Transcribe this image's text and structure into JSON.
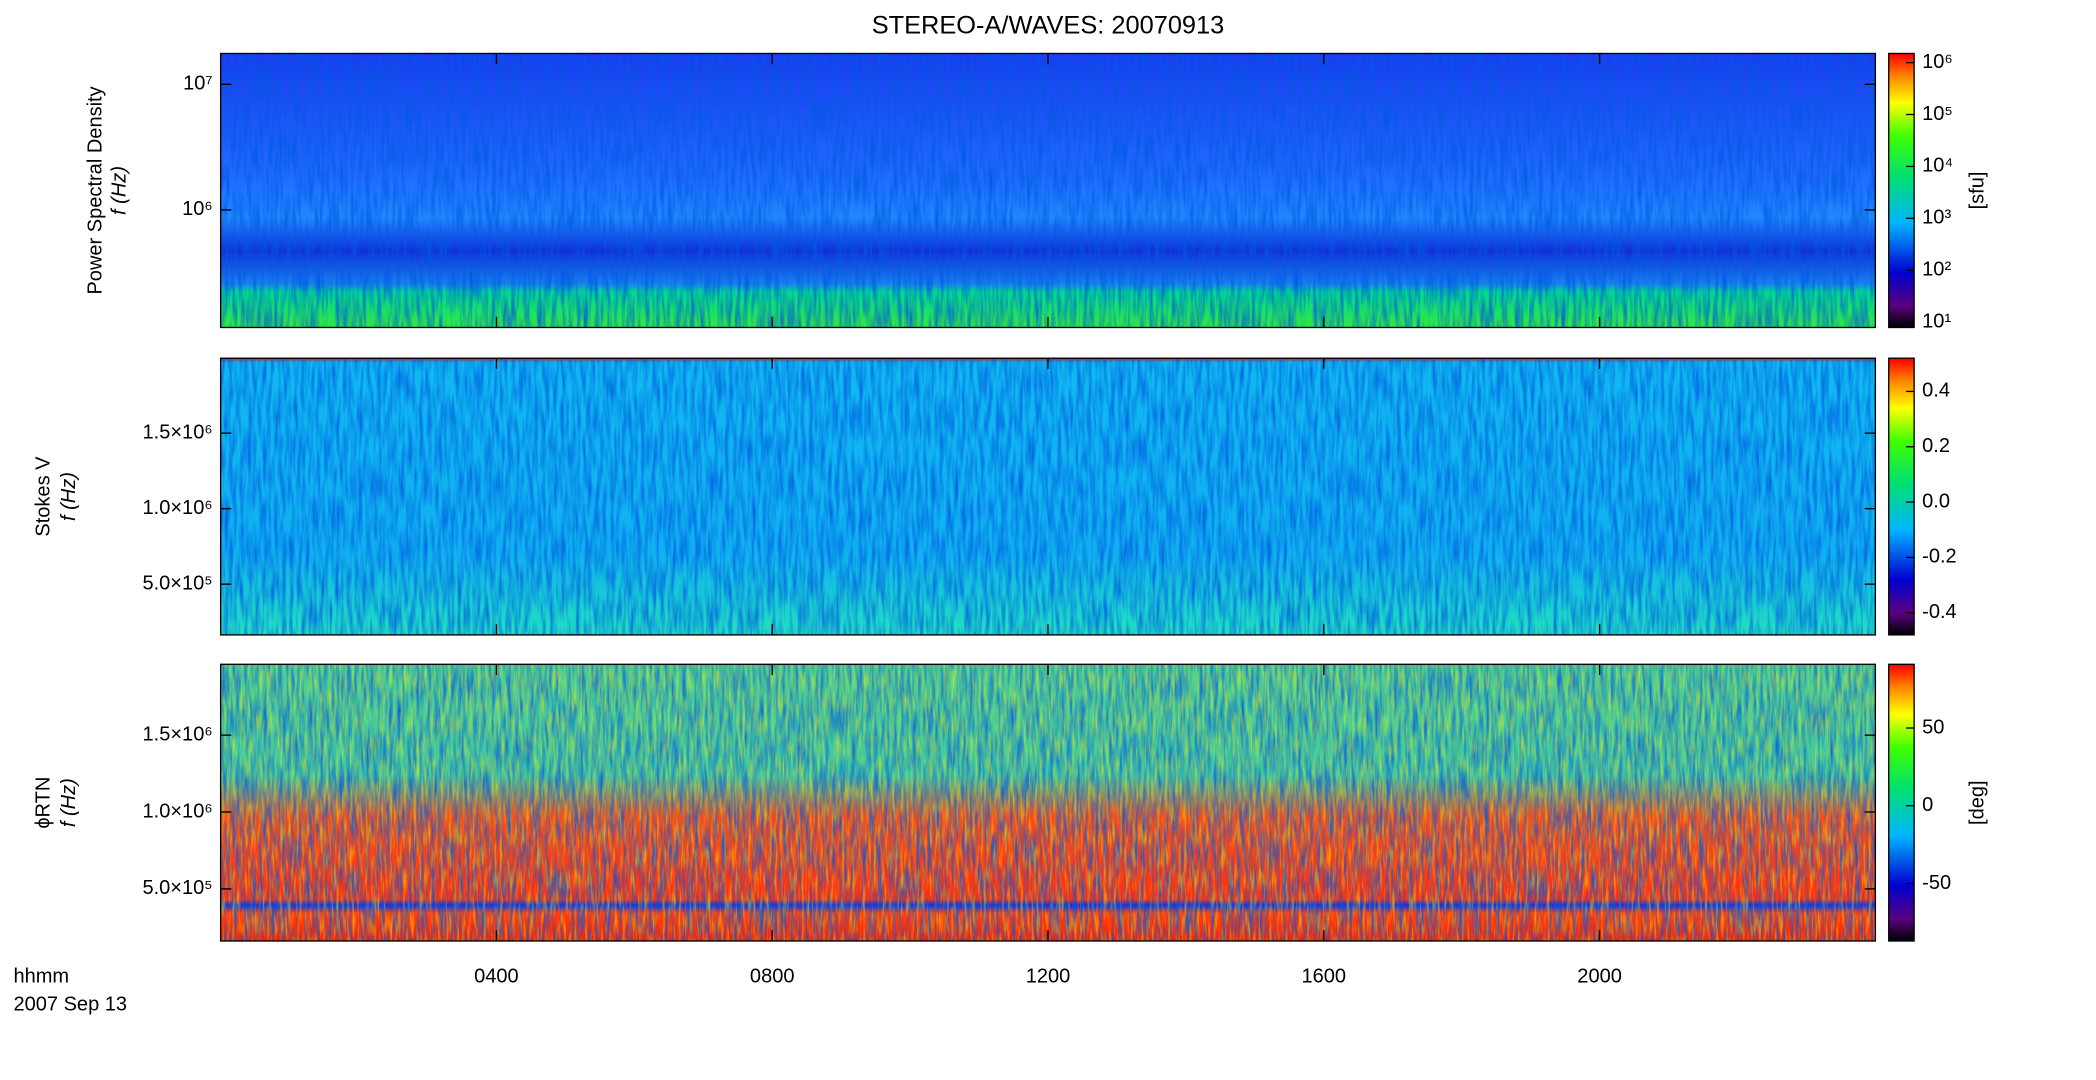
{
  "chart_data": {
    "type": "spectrogram",
    "title": "STEREO-A/WAVES: 20070913",
    "xlabel": [
      "hhmm",
      "2007 Sep 13"
    ],
    "xlim": [
      0,
      24
    ],
    "xticks": [
      {
        "value": 4,
        "label": "0400"
      },
      {
        "value": 8,
        "label": "0800"
      },
      {
        "value": 12,
        "label": "1200"
      },
      {
        "value": 16,
        "label": "1600"
      },
      {
        "value": 20,
        "label": "2000"
      }
    ],
    "panels": [
      {
        "ylabel": [
          "Power Spectral Density",
          "f (Hz)"
        ],
        "ylog": true,
        "ylim": [
          116000,
          17600000
        ],
        "yticks": [
          {
            "value": 1000000,
            "label": "10⁶"
          },
          {
            "value": 10000000,
            "label": "10⁷"
          }
        ],
        "colorbar": {
          "log": true,
          "clim": [
            7.9,
            1500000
          ],
          "label": "[sfu]",
          "ticks": [
            {
              "value": 10,
              "label": "10¹"
            },
            {
              "value": 100,
              "label": "10²"
            },
            {
              "value": 1000,
              "label": "10³"
            },
            {
              "value": 10000,
              "label": "10⁴"
            },
            {
              "value": 100000,
              "label": "10⁵"
            },
            {
              "value": 1000000,
              "label": "10⁶"
            }
          ]
        }
      },
      {
        "ylabel": [
          "Stokes V",
          "f (Hz)"
        ],
        "ylog": false,
        "ylim": [
          164000,
          1996000
        ],
        "yticks": [
          {
            "value": 500000,
            "label": "5.0×10⁵"
          },
          {
            "value": 1000000,
            "label": "1.0×10⁶"
          },
          {
            "value": 1500000,
            "label": "1.5×10⁶"
          }
        ],
        "colorbar": {
          "log": false,
          "clim": [
            -0.48,
            0.52
          ],
          "ticks": [
            -0.4,
            -0.2,
            {
              "value": 0,
              "label": "0.0"
            },
            0.2,
            0.4
          ]
        }
      },
      {
        "ylabel": [
          "ϕRTN",
          "f (Hz)"
        ],
        "ylog": false,
        "ylim": [
          161000,
          1961000
        ],
        "yticks": [
          {
            "value": 500000,
            "label": "5.0×10⁵"
          },
          {
            "value": 1000000,
            "label": "1.0×10⁶"
          },
          {
            "value": 1500000,
            "label": "1.5×10⁶"
          }
        ],
        "colorbar": {
          "log": false,
          "clim": [
            -87,
            91
          ],
          "label": "[deg]",
          "ticks": [
            -50,
            0,
            50
          ]
        }
      }
    ]
  }
}
